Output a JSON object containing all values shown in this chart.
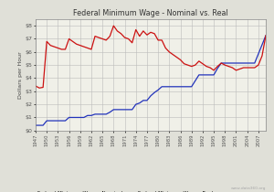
{
  "title": "Federal Minimum Wage - Nominal vs. Real",
  "ylabel": "Dollars per Hour",
  "background_color": "#e0e0d8",
  "plot_bg_color": "#f0f0e8",
  "nominal_color": "#2233bb",
  "real_color": "#cc1111",
  "legend_nominal": "Federal Minimum Wage - Nominal",
  "legend_real": "Federal Minimum Wage - Real —",
  "watermark": "www.data360.org",
  "years": [
    1947,
    1948,
    1949,
    1950,
    1951,
    1952,
    1953,
    1954,
    1955,
    1956,
    1957,
    1958,
    1959,
    1960,
    1961,
    1962,
    1963,
    1964,
    1965,
    1966,
    1967,
    1968,
    1969,
    1970,
    1971,
    1972,
    1973,
    1974,
    1975,
    1976,
    1977,
    1978,
    1979,
    1980,
    1981,
    1982,
    1983,
    1984,
    1985,
    1986,
    1987,
    1988,
    1989,
    1990,
    1991,
    1992,
    1993,
    1994,
    1995,
    1996,
    1997,
    1998,
    1999,
    2000,
    2001,
    2002,
    2003,
    2004,
    2005,
    2006,
    2007,
    2008,
    2009
  ],
  "nominal": [
    0.4,
    0.4,
    0.4,
    0.75,
    0.75,
    0.75,
    0.75,
    0.75,
    0.75,
    1.0,
    1.0,
    1.0,
    1.0,
    1.0,
    1.15,
    1.15,
    1.25,
    1.25,
    1.25,
    1.25,
    1.4,
    1.6,
    1.6,
    1.6,
    1.6,
    1.6,
    1.6,
    2.0,
    2.1,
    2.3,
    2.3,
    2.65,
    2.9,
    3.1,
    3.35,
    3.35,
    3.35,
    3.35,
    3.35,
    3.35,
    3.35,
    3.35,
    3.35,
    3.8,
    4.25,
    4.25,
    4.25,
    4.25,
    4.25,
    4.75,
    5.15,
    5.15,
    5.15,
    5.15,
    5.15,
    5.15,
    5.15,
    5.15,
    5.15,
    5.15,
    5.85,
    6.55,
    7.25
  ],
  "real": [
    3.4,
    3.25,
    3.3,
    6.8,
    6.5,
    6.4,
    6.3,
    6.2,
    6.2,
    7.0,
    6.8,
    6.6,
    6.5,
    6.4,
    6.3,
    6.2,
    7.2,
    7.1,
    7.0,
    6.9,
    7.2,
    8.0,
    7.6,
    7.4,
    7.1,
    7.0,
    6.7,
    7.7,
    7.2,
    7.6,
    7.3,
    7.5,
    7.4,
    6.9,
    6.9,
    6.3,
    6.0,
    5.8,
    5.6,
    5.4,
    5.1,
    5.0,
    4.9,
    5.0,
    5.3,
    5.1,
    4.9,
    4.8,
    4.6,
    4.9,
    5.15,
    5.0,
    4.9,
    4.8,
    4.6,
    4.7,
    4.8,
    4.8,
    4.8,
    4.8,
    5.0,
    5.7,
    7.25
  ],
  "ylim": [
    0,
    8.5
  ],
  "yticks": [
    0,
    1,
    2,
    3,
    4,
    5,
    6,
    7,
    8
  ]
}
